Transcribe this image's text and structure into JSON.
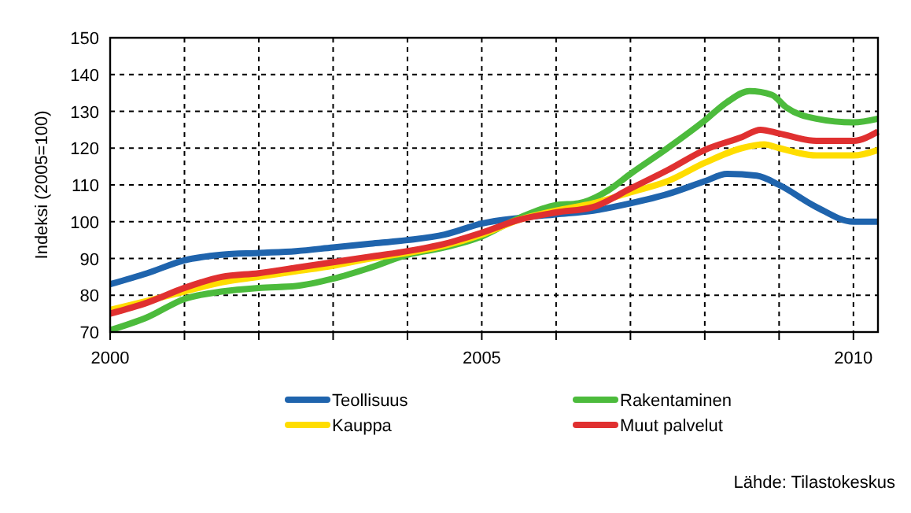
{
  "chart_data": {
    "type": "line",
    "ylabel": "Indeksi (2005=100)",
    "xlim": [
      2000,
      2010.33
    ],
    "ylim": [
      70,
      150
    ],
    "xticks": [
      2000,
      {
        "value": 2001,
        "label": null
      },
      {
        "value": 2002,
        "label": null
      },
      {
        "value": 2003,
        "label": null
      },
      {
        "value": 2004,
        "label": null
      },
      2005,
      {
        "value": 2006,
        "label": null
      },
      {
        "value": 2007,
        "label": null
      },
      {
        "value": 2008,
        "label": null
      },
      {
        "value": 2009,
        "label": null
      },
      2010
    ],
    "yticks": [
      70,
      80,
      90,
      100,
      110,
      120,
      130,
      140,
      150
    ],
    "grid": true,
    "legend": "bottom",
    "line_style": "solid",
    "marker": "none",
    "annotations": [
      "Lähde: Tilastokeskus"
    ],
    "series": [
      {
        "name": "Teollisuus",
        "color": "#1f64ad",
        "x": [
          2000,
          2000.5,
          2001,
          2001.5,
          2002,
          2002.5,
          2003,
          2003.5,
          2004,
          2004.5,
          2005,
          2005.5,
          2006,
          2006.5,
          2007,
          2007.5,
          2008,
          2008.3,
          2008.7,
          2009,
          2009.5,
          2010,
          2010.33
        ],
        "values": [
          83,
          86,
          89.5,
          91,
          91.5,
          92,
          93,
          94,
          95,
          96.5,
          99.5,
          101,
          102,
          103,
          105,
          107.5,
          111,
          113,
          112.5,
          110,
          104,
          100,
          100
        ]
      },
      {
        "name": "Rakentaminen",
        "color": "#4cbb3c",
        "x": [
          2000,
          2000.5,
          2001,
          2001.5,
          2002,
          2002.5,
          2003,
          2003.5,
          2004,
          2004.5,
          2005,
          2005.5,
          2006,
          2006.3,
          2006.7,
          2007,
          2007.5,
          2008,
          2008.3,
          2008.6,
          2008.9,
          2009.1,
          2009.5,
          2010,
          2010.33
        ],
        "values": [
          70.5,
          74,
          79,
          81,
          82,
          82.5,
          84.5,
          87.5,
          91,
          93,
          96,
          101,
          104.5,
          105,
          108.5,
          113,
          120,
          127.5,
          132.5,
          135.5,
          134.5,
          131,
          128,
          127,
          128
        ]
      },
      {
        "name": "Kauppa",
        "color": "#ffdd00",
        "x": [
          2000,
          2000.5,
          2001,
          2001.5,
          2002,
          2002.5,
          2003,
          2003.5,
          2004,
          2004.5,
          2005,
          2005.5,
          2006,
          2006.5,
          2007,
          2007.5,
          2008,
          2008.5,
          2008.8,
          2009,
          2009.5,
          2010,
          2010.33
        ],
        "values": [
          76,
          78.5,
          81,
          83.5,
          85,
          86.5,
          88,
          90,
          91.5,
          93.5,
          96.5,
          100.5,
          103,
          105,
          108,
          111,
          116,
          120,
          121,
          120,
          118,
          118,
          119.5
        ]
      },
      {
        "name": "Muut palvelut",
        "color": "#e03030",
        "x": [
          2000,
          2000.5,
          2001,
          2001.5,
          2002,
          2002.5,
          2003,
          2003.5,
          2004,
          2004.5,
          2005,
          2005.5,
          2006,
          2006.5,
          2007,
          2007.5,
          2008,
          2008.5,
          2008.75,
          2009,
          2009.5,
          2010,
          2010.33
        ],
        "values": [
          75,
          78,
          82,
          85,
          86,
          87.5,
          89,
          90.5,
          92,
          94,
          97,
          100.5,
          102.5,
          104,
          109,
          114,
          119.5,
          123,
          125,
          124,
          122,
          122,
          124.5
        ]
      }
    ]
  }
}
